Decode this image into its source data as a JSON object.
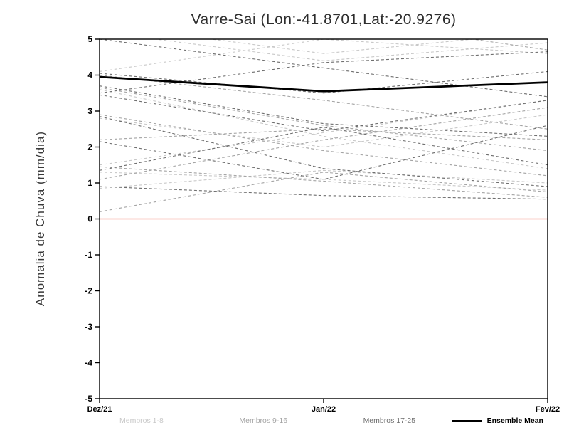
{
  "chart_data": {
    "type": "line",
    "title": "Varre-Sai (Lon:-41.8701,Lat:-20.9276)",
    "xlabel": "",
    "ylabel": "Anomalia de Chuva (mm/dia)",
    "x_ticklabels": [
      "Dez/21",
      "Jan/22",
      "Fev/22"
    ],
    "ylim": [
      -5,
      5
    ],
    "yticks": [
      -5,
      -4,
      -3,
      -2,
      -1,
      0,
      1,
      2,
      3,
      4,
      5
    ],
    "grid": false,
    "zero_line_color": "#ee4433",
    "axis_color": "#000000",
    "groups": [
      {
        "name": "Membros 1-8",
        "color": "#c8c8c8",
        "style": "dashed",
        "series": [
          [
            5.2,
            4.4,
            4.9
          ],
          [
            4.1,
            5.0,
            4.6
          ],
          [
            3.6,
            2.3,
            1.4
          ],
          [
            2.8,
            2.0,
            2.9
          ],
          [
            1.5,
            2.4,
            3.3
          ],
          [
            1.3,
            1.1,
            0.8
          ],
          [
            0.85,
            1.35,
            1.0
          ],
          [
            5.4,
            4.6,
            5.2
          ]
        ]
      },
      {
        "name": "Membros 9-16",
        "color": "#a4a4a4",
        "style": "dashed",
        "series": [
          [
            4.0,
            3.3,
            2.5
          ],
          [
            3.65,
            2.6,
            1.9
          ],
          [
            2.9,
            1.9,
            1.2
          ],
          [
            2.2,
            2.5,
            2.2
          ],
          [
            1.45,
            1.05,
            0.6
          ],
          [
            1.1,
            2.2,
            3.1
          ],
          [
            0.2,
            1.3,
            0.75
          ],
          [
            5.1,
            5.6,
            4.7
          ]
        ]
      },
      {
        "name": "Membros 17-25",
        "color": "#6e6e6e",
        "style": "dashed",
        "series": [
          [
            4.05,
            3.5,
            4.1
          ],
          [
            3.7,
            2.65,
            2.3
          ],
          [
            3.5,
            4.35,
            4.65
          ],
          [
            2.85,
            1.4,
            0.9
          ],
          [
            2.15,
            1.1,
            2.6
          ],
          [
            1.35,
            2.55,
            1.5
          ],
          [
            5.0,
            4.2,
            3.4
          ],
          [
            3.45,
            2.45,
            3.3
          ],
          [
            0.9,
            0.65,
            0.55
          ]
        ]
      }
    ],
    "ensemble_mean": {
      "name": "Ensemble Mean",
      "color": "#000000",
      "values": [
        3.95,
        3.55,
        3.8
      ]
    }
  }
}
